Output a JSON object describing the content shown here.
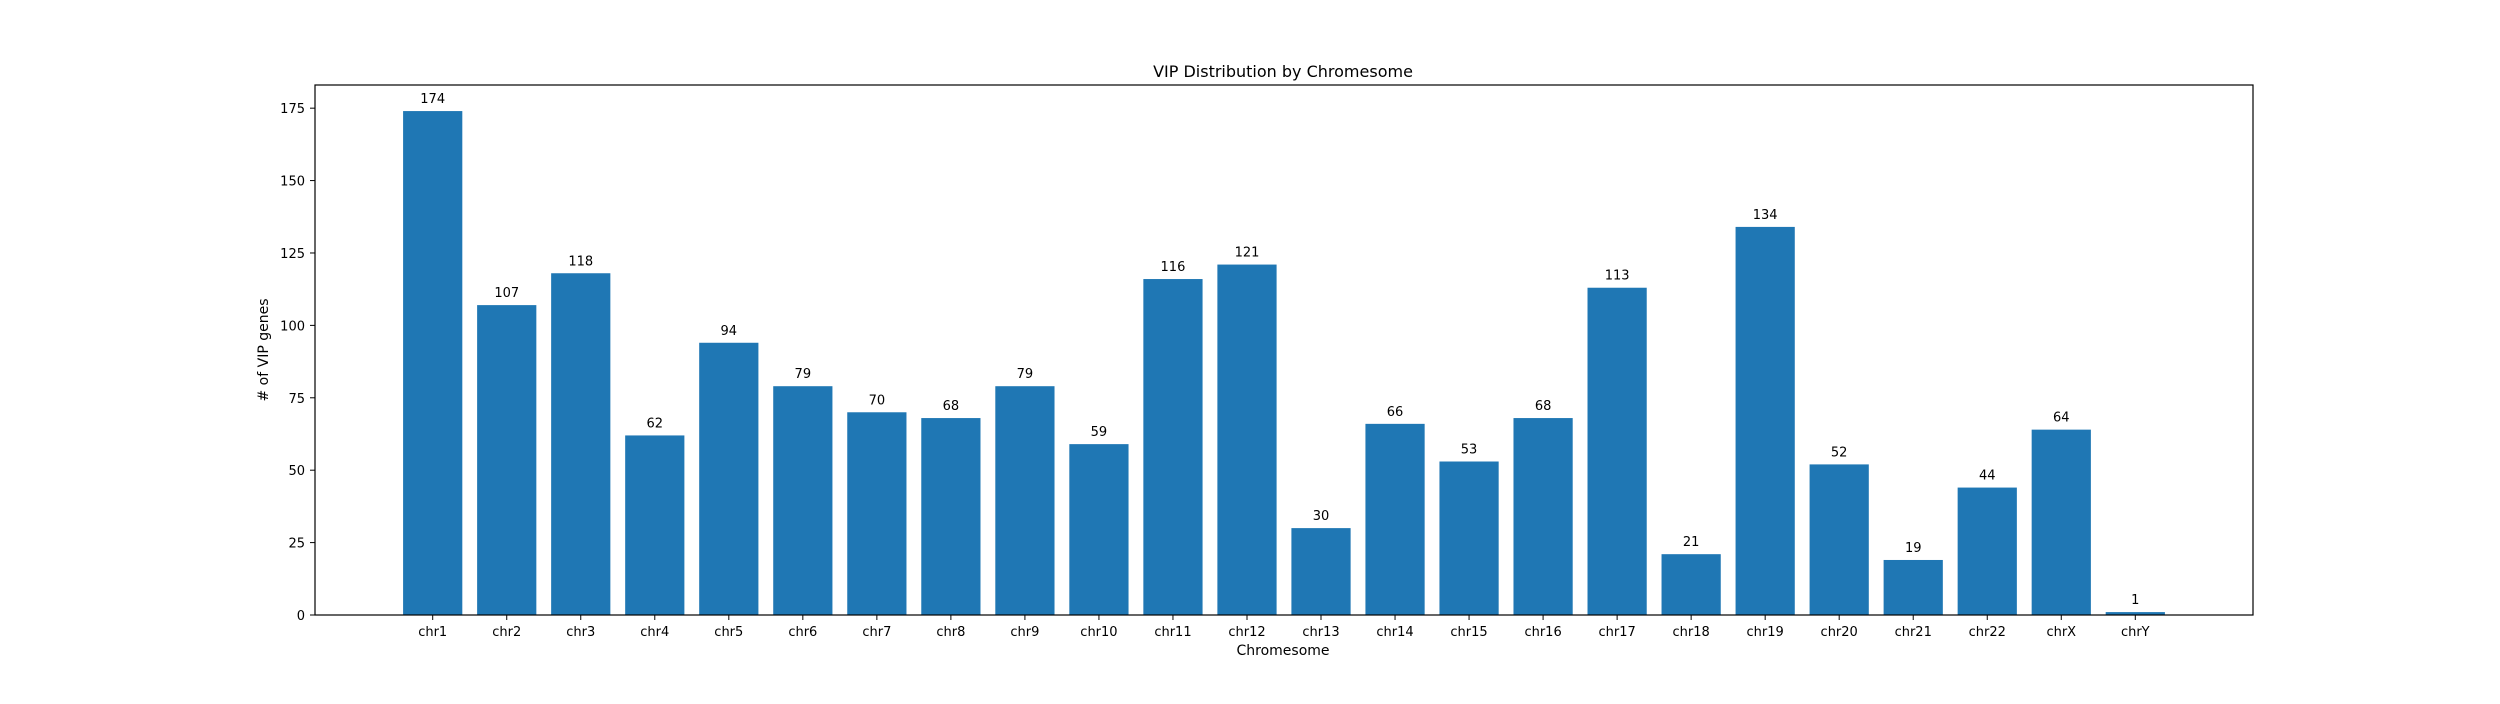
{
  "chart_data": {
    "type": "bar",
    "title": "VIP Distribution by Chromesome",
    "xlabel": "Chromesome",
    "ylabel": "# of VIP genes",
    "categories": [
      "chr1",
      "chr2",
      "chr3",
      "chr4",
      "chr5",
      "chr6",
      "chr7",
      "chr8",
      "chr9",
      "chr10",
      "chr11",
      "chr12",
      "chr13",
      "chr14",
      "chr15",
      "chr16",
      "chr17",
      "chr18",
      "chr19",
      "chr20",
      "chr21",
      "chr22",
      "chrX",
      "chrY"
    ],
    "values": [
      174,
      107,
      118,
      62,
      94,
      79,
      70,
      68,
      79,
      59,
      116,
      121,
      30,
      66,
      53,
      68,
      113,
      21,
      134,
      52,
      19,
      44,
      64,
      1
    ],
    "ylim": [
      0,
      183
    ],
    "yticks": [
      0,
      25,
      50,
      75,
      100,
      125,
      150,
      175
    ],
    "bar_color": "#1f77b4",
    "grid": false,
    "legend": "none"
  }
}
